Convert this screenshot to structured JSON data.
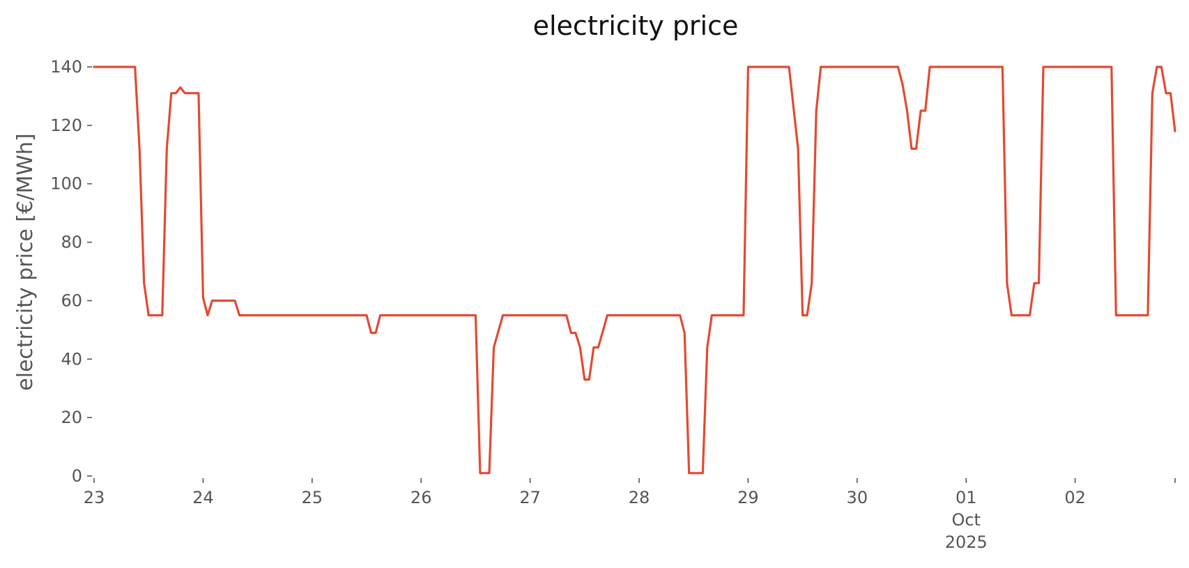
{
  "chart_data": {
    "type": "line",
    "title": "electricity price",
    "xlabel": "",
    "ylabel": "electricity price [€/MWh]",
    "ylim": [
      0,
      140
    ],
    "xlim": [
      "2025-09-23T00:00",
      "2025-10-02T22:00"
    ],
    "grid": false,
    "y_ticks": [
      0,
      20,
      40,
      60,
      80,
      100,
      120,
      140
    ],
    "x_ticks": [
      {
        "date": "2025-09-23",
        "label": "23"
      },
      {
        "date": "2025-09-24",
        "label": "24"
      },
      {
        "date": "2025-09-25",
        "label": "25"
      },
      {
        "date": "2025-09-26",
        "label": "26"
      },
      {
        "date": "2025-09-27",
        "label": "27"
      },
      {
        "date": "2025-09-28",
        "label": "28"
      },
      {
        "date": "2025-09-29",
        "label": "29"
      },
      {
        "date": "2025-09-30",
        "label": "30"
      },
      {
        "date": "2025-10-01",
        "label": "01",
        "sublabels": [
          "Oct",
          "2025"
        ]
      },
      {
        "date": "2025-10-02",
        "label": "02"
      },
      {
        "date": "2025-10-02T22:00",
        "label": ""
      }
    ],
    "series": [
      {
        "color": "#e24a33",
        "points": [
          [
            "2025-09-23T00:00",
            140
          ],
          [
            "2025-09-23T09:00",
            140
          ],
          [
            "2025-09-23T10:00",
            112
          ],
          [
            "2025-09-23T11:00",
            66
          ],
          [
            "2025-09-23T12:00",
            55
          ],
          [
            "2025-09-23T15:00",
            55
          ],
          [
            "2025-09-23T16:00",
            112
          ],
          [
            "2025-09-23T17:00",
            131
          ],
          [
            "2025-09-23T18:00",
            131
          ],
          [
            "2025-09-23T19:00",
            133
          ],
          [
            "2025-09-23T20:00",
            131
          ],
          [
            "2025-09-23T23:00",
            131
          ],
          [
            "2025-09-24T00:00",
            61
          ],
          [
            "2025-09-24T01:00",
            55
          ],
          [
            "2025-09-24T02:00",
            60
          ],
          [
            "2025-09-24T07:00",
            60
          ],
          [
            "2025-09-24T08:00",
            55
          ],
          [
            "2025-09-25T12:00",
            55
          ],
          [
            "2025-09-25T13:00",
            49
          ],
          [
            "2025-09-25T14:00",
            49
          ],
          [
            "2025-09-25T15:00",
            55
          ],
          [
            "2025-09-26T12:00",
            55
          ],
          [
            "2025-09-26T13:00",
            1
          ],
          [
            "2025-09-26T15:00",
            1
          ],
          [
            "2025-09-26T16:00",
            44
          ],
          [
            "2025-09-26T18:00",
            55
          ],
          [
            "2025-09-27T08:00",
            55
          ],
          [
            "2025-09-27T09:00",
            49
          ],
          [
            "2025-09-27T10:00",
            49
          ],
          [
            "2025-09-27T11:00",
            44
          ],
          [
            "2025-09-27T12:00",
            33
          ],
          [
            "2025-09-27T13:00",
            33
          ],
          [
            "2025-09-27T14:00",
            44
          ],
          [
            "2025-09-27T15:00",
            44
          ],
          [
            "2025-09-27T17:00",
            55
          ],
          [
            "2025-09-28T09:00",
            55
          ],
          [
            "2025-09-28T10:00",
            49
          ],
          [
            "2025-09-28T11:00",
            1
          ],
          [
            "2025-09-28T14:00",
            1
          ],
          [
            "2025-09-28T15:00",
            44
          ],
          [
            "2025-09-28T16:00",
            55
          ],
          [
            "2025-09-28T23:00",
            55
          ],
          [
            "2025-09-29T00:00",
            140
          ],
          [
            "2025-09-29T09:00",
            140
          ],
          [
            "2025-09-29T11:00",
            112
          ],
          [
            "2025-09-29T12:00",
            55
          ],
          [
            "2025-09-29T13:00",
            55
          ],
          [
            "2025-09-29T14:00",
            66
          ],
          [
            "2025-09-29T15:00",
            125
          ],
          [
            "2025-09-29T16:00",
            140
          ],
          [
            "2025-09-30T09:00",
            140
          ],
          [
            "2025-09-30T10:00",
            134
          ],
          [
            "2025-09-30T11:00",
            125
          ],
          [
            "2025-09-30T12:00",
            112
          ],
          [
            "2025-09-30T13:00",
            112
          ],
          [
            "2025-09-30T14:00",
            125
          ],
          [
            "2025-09-30T15:00",
            125
          ],
          [
            "2025-09-30T16:00",
            140
          ],
          [
            "2025-10-01T08:00",
            140
          ],
          [
            "2025-10-01T09:00",
            66
          ],
          [
            "2025-10-01T10:00",
            55
          ],
          [
            "2025-10-01T14:00",
            55
          ],
          [
            "2025-10-01T15:00",
            66
          ],
          [
            "2025-10-01T16:00",
            66
          ],
          [
            "2025-10-01T17:00",
            140
          ],
          [
            "2025-10-02T08:00",
            140
          ],
          [
            "2025-10-02T09:00",
            55
          ],
          [
            "2025-10-02T16:00",
            55
          ],
          [
            "2025-10-02T17:00",
            131
          ],
          [
            "2025-10-02T18:00",
            140
          ],
          [
            "2025-10-02T19:00",
            140
          ],
          [
            "2025-10-02T20:00",
            131
          ],
          [
            "2025-10-02T21:00",
            131
          ],
          [
            "2025-10-02T22:00",
            118
          ]
        ]
      }
    ]
  }
}
